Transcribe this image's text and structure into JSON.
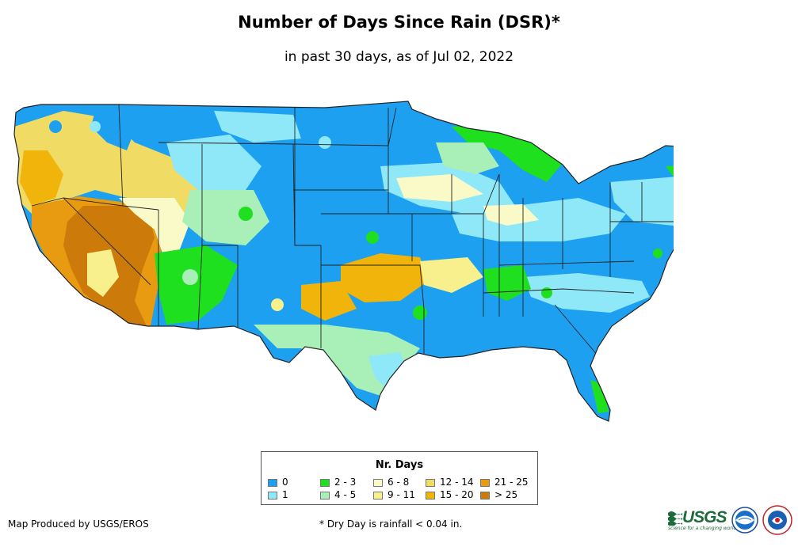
{
  "title": "Number of Days Since Rain (DSR)*",
  "subtitle": "in past 30 days, as of Jul 02, 2022",
  "legend": {
    "title": "Nr. Days",
    "items": [
      {
        "label": "0",
        "color": "#1ea0f0"
      },
      {
        "label": "1",
        "color": "#8ee8f8"
      },
      {
        "label": "2 - 3",
        "color": "#1ee01e"
      },
      {
        "label": "4 - 5",
        "color": "#a8f0b8"
      },
      {
        "label": "6 - 8",
        "color": "#fafac8"
      },
      {
        "label": "9 - 11",
        "color": "#f8f08c"
      },
      {
        "label": "12 - 14",
        "color": "#f0dc64"
      },
      {
        "label": "15 - 20",
        "color": "#f0b40a"
      },
      {
        "label": "21 - 25",
        "color": "#e89a10"
      },
      {
        "label": "> 25",
        "color": "#cc7a0a"
      }
    ]
  },
  "credit": "Map Produced by USGS/EROS",
  "footnote": "* Dry Day is rainfall < 0.04 in.",
  "logos": {
    "usgs_word": "USGS",
    "usgs_tagline": "science for a changing world",
    "noaa_word": "NOAA",
    "nws_word": "NWS"
  }
}
